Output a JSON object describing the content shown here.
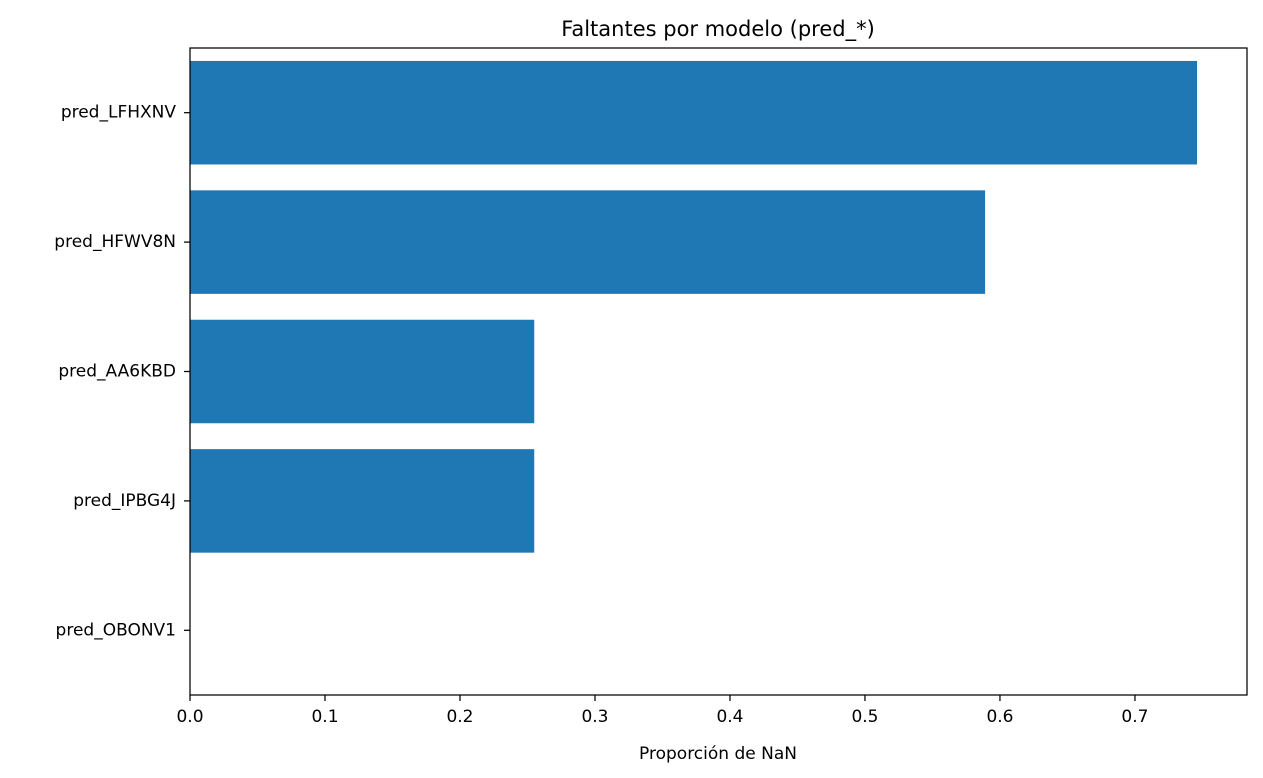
{
  "chart_data": {
    "type": "bar",
    "orientation": "horizontal",
    "title": "Faltantes por modelo (pred_*)",
    "xlabel": "Proporción de NaN",
    "ylabel": "",
    "categories": [
      "pred_LFHXNV",
      "pred_HFWV8N",
      "pred_AA6KBD",
      "pred_IPBG4J",
      "pred_OBONV1"
    ],
    "values": [
      0.746,
      0.589,
      0.255,
      0.255,
      0.0
    ],
    "xlim": [
      0,
      0.783
    ],
    "xticks": [
      0.0,
      0.1,
      0.2,
      0.3,
      0.4,
      0.5,
      0.6,
      0.7
    ],
    "xtick_labels": [
      "0.0",
      "0.1",
      "0.2",
      "0.3",
      "0.4",
      "0.5",
      "0.6",
      "0.7"
    ],
    "bar_color": "#1f77b4",
    "grid": false,
    "legend": "none"
  }
}
